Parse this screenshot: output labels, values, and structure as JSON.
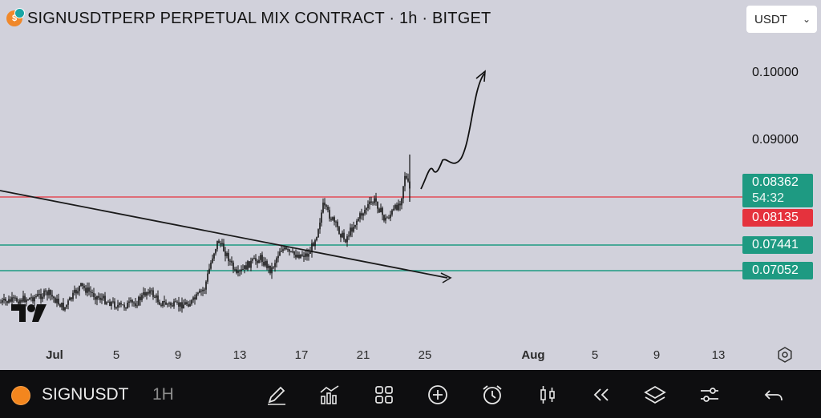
{
  "header": {
    "title": "SIGNUSDTPERP PERPETUAL MIX CONTRACT · 1h · BITGET",
    "currency": "USDT"
  },
  "price_axis": {
    "labels": [
      "0.10000",
      "0.09000"
    ],
    "badges": {
      "current_price": "0.08362",
      "countdown": "54:32",
      "red_line": "0.08135",
      "support_1": "0.07441",
      "support_2": "0.07052"
    }
  },
  "time_axis": {
    "labels": [
      "Jul",
      "5",
      "9",
      "13",
      "17",
      "21",
      "25",
      "Aug",
      "5",
      "9",
      "13"
    ]
  },
  "colors": {
    "background": "#d1d1db",
    "red_line": "#e5323d",
    "green_line": "#1e9a82",
    "candles": "#111111"
  },
  "watermark": "TV",
  "bottom_bar": {
    "symbol": "SIGNUSDT",
    "interval": "1H",
    "tools": [
      "pencil-icon",
      "chart-bars-icon",
      "grid-icon",
      "plus-circle-icon",
      "alarm-icon",
      "candles-icon",
      "rewind-icon",
      "layers-icon",
      "sliders-icon",
      "undo-icon"
    ]
  }
}
